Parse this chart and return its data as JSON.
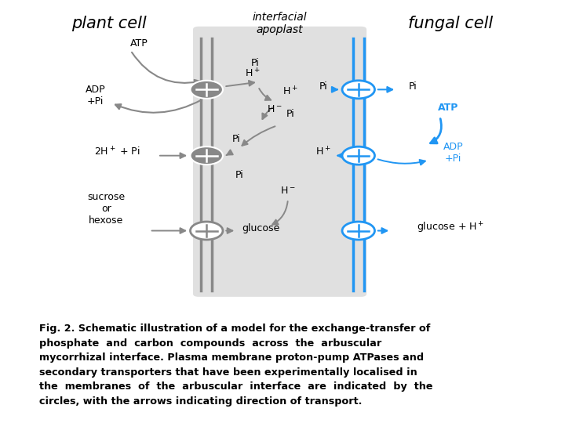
{
  "bg_color": "#ffffff",
  "apoplast_bg": "#e0e0e0",
  "gray_color": "#888888",
  "blue_color": "#2196F3",
  "caption_line1": "Fig. 2. Schematic illustration of a model for the exchange-transfer of",
  "caption_line2": "phosphate  and  carbon  compounds  across  the  arbuscular",
  "caption_line3": "mycorrhizal interface. Plasma membrane proton-pump ATPases and",
  "caption_line4": "secondary transporters that have been experimentally localised in",
  "caption_line5": "the  membranes  of  the  arbuscular  interface  are  indicated  by  the",
  "caption_line6": "circles, with the arrows indicating direction of transport."
}
